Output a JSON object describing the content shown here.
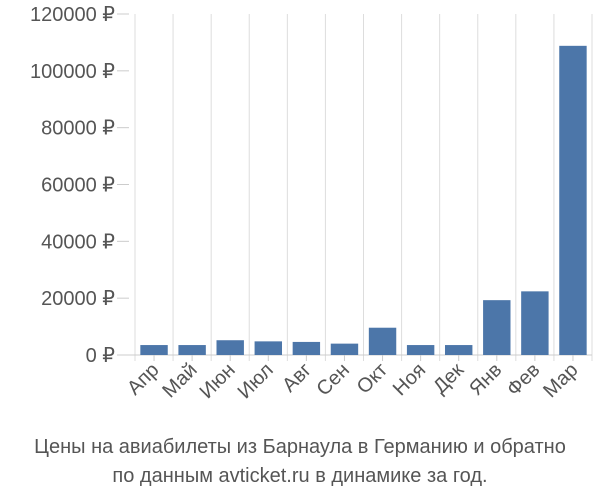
{
  "chart_data": {
    "type": "bar",
    "categories": [
      "Апр",
      "Май",
      "Июн",
      "Июл",
      "Авг",
      "Сен",
      "Окт",
      "Ноя",
      "Дек",
      "Янв",
      "Фев",
      "Мар"
    ],
    "values": [
      3500,
      3500,
      5200,
      4800,
      4600,
      4000,
      9600,
      3500,
      3500,
      19300,
      22400,
      108800
    ],
    "ylim": [
      0,
      120000
    ],
    "yticks": [
      0,
      20000,
      40000,
      60000,
      80000,
      100000,
      120000
    ],
    "ytick_labels": [
      "0 ₽",
      "20000 ₽",
      "40000 ₽",
      "60000 ₽",
      "80000 ₽",
      "100000 ₽",
      "120000 ₽"
    ],
    "grid": "vertical",
    "bar_color": "#4c76a9",
    "title": "",
    "xlabel": "",
    "ylabel": ""
  },
  "caption": {
    "line1": "Цены на авиабилеты из Барнаула в Германию и обратно",
    "line2": "по данным avticket.ru в динамике за год."
  }
}
